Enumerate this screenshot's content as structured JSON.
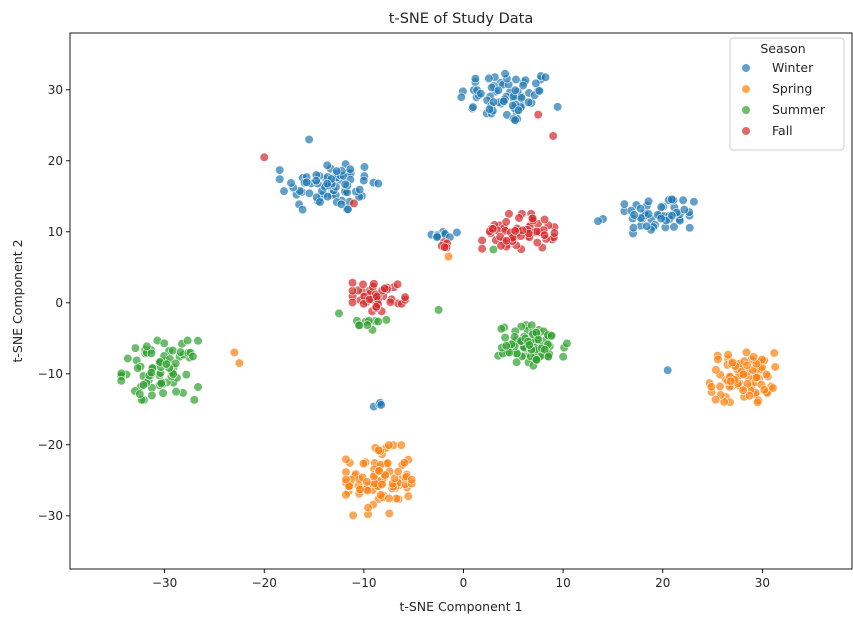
{
  "chart_data": {
    "type": "scatter",
    "title": "t-SNE of Study Data",
    "xlabel": "t-SNE Component 1",
    "ylabel": "t-SNE Component 2",
    "xlim": [
      -39.5,
      39
    ],
    "ylim": [
      -37.5,
      38
    ],
    "xticks": [
      -30,
      -20,
      -10,
      0,
      10,
      20,
      30
    ],
    "yticks": [
      -30,
      -20,
      -10,
      0,
      10,
      20,
      30
    ],
    "grid": false,
    "legend": {
      "title": "Season",
      "placement": "top-right"
    },
    "point_opacity": 0.7,
    "series": [
      {
        "name": "Winter",
        "color": "#1f77b4",
        "clusters": [
          {
            "center": [
              4.5,
              29.0
            ],
            "spread": [
              4.5,
              3.5
            ],
            "count": 70
          },
          {
            "center": [
              -13.5,
              16.5
            ],
            "spread": [
              4.5,
              3.5
            ],
            "count": 75
          },
          {
            "center": [
              20.0,
              12.5
            ],
            "spread": [
              3.5,
              2.5
            ],
            "count": 50
          },
          {
            "center": [
              -2.0,
              9.5
            ],
            "spread": [
              1.5,
              0.6
            ],
            "count": 10
          },
          {
            "center": [
              -8.5,
              -14.5
            ],
            "spread": [
              0.6,
              0.5
            ],
            "count": 4
          }
        ],
        "points": [
          [
            -15.5,
            23.0
          ],
          [
            14.0,
            11.8
          ],
          [
            13.5,
            11.5
          ],
          [
            20.5,
            -9.5
          ]
        ]
      },
      {
        "name": "Spring",
        "color": "#ff7f0e",
        "clusters": [
          {
            "center": [
              -8.5,
              -25.0
            ],
            "spread": [
              3.0,
              4.5
            ],
            "count": 90
          },
          {
            "center": [
              28.0,
              -10.5
            ],
            "spread": [
              3.0,
              3.2
            ],
            "count": 85
          }
        ],
        "points": [
          [
            -22.5,
            -8.5
          ],
          [
            -23.0,
            -7.0
          ],
          [
            -1.5,
            6.5
          ]
        ]
      },
      {
        "name": "Summer",
        "color": "#2ca02c",
        "clusters": [
          {
            "center": [
              -30.5,
              -9.5
            ],
            "spread": [
              3.5,
              3.8
            ],
            "count": 75
          },
          {
            "center": [
              7.0,
              -6.0
            ],
            "spread": [
              3.2,
              2.6
            ],
            "count": 80
          },
          {
            "center": [
              -9.5,
              -3.0
            ],
            "spread": [
              1.6,
              0.8
            ],
            "count": 10
          }
        ],
        "points": [
          [
            -2.5,
            -1.0
          ],
          [
            -12.5,
            -1.5
          ],
          [
            3.0,
            7.5
          ]
        ]
      },
      {
        "name": "Fall",
        "color": "#d62728",
        "clusters": [
          {
            "center": [
              5.5,
              10.0
            ],
            "spread": [
              3.3,
              2.3
            ],
            "count": 60
          },
          {
            "center": [
              -8.5,
              1.0
            ],
            "spread": [
              2.4,
              2.0
            ],
            "count": 40
          },
          {
            "center": [
              -2.0,
              8.2
            ],
            "spread": [
              0.5,
              0.4
            ],
            "count": 5
          }
        ],
        "points": [
          [
            -20.0,
            20.5
          ],
          [
            7.5,
            26.5
          ],
          [
            9.0,
            23.5
          ],
          [
            -11.0,
            14.0
          ]
        ]
      }
    ]
  }
}
